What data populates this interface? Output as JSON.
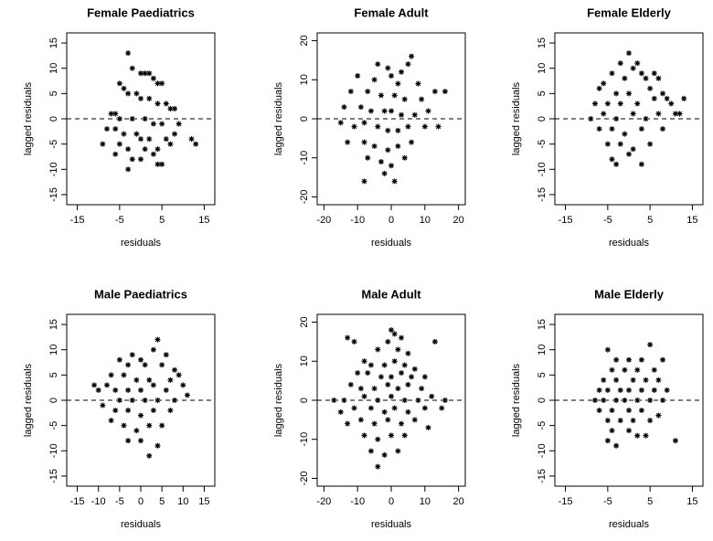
{
  "chart_data": [
    {
      "type": "scatter",
      "title": "Female Paediatrics",
      "xlabel": "residuals",
      "ylabel": "lagged residuals",
      "color": "#000000",
      "hline": 0,
      "xlim": [
        -17.5,
        17.5
      ],
      "ylim": [
        -17,
        17
      ],
      "xticks": [
        -15,
        -5,
        5,
        15
      ],
      "yticks": [
        -15,
        -10,
        -5,
        0,
        5,
        10,
        15
      ],
      "x": [
        -3,
        -2,
        0,
        1,
        2,
        3,
        4,
        5,
        -5,
        -4,
        -3,
        -1,
        0,
        2,
        4,
        6,
        7,
        8,
        -7,
        -6,
        -5,
        -2,
        1,
        3,
        5,
        9,
        -8,
        -6,
        -4,
        -1,
        0,
        2,
        6,
        8,
        -9,
        -5,
        -3,
        1,
        4,
        7,
        -6,
        -2,
        0,
        3,
        5,
        13,
        12,
        -3,
        4
      ],
      "y": [
        13,
        10,
        9,
        9,
        9,
        8,
        7,
        7,
        7,
        6,
        5,
        5,
        4,
        4,
        3,
        3,
        2,
        2,
        1,
        1,
        0,
        0,
        0,
        -1,
        -1,
        -1,
        -2,
        -2,
        -3,
        -3,
        -4,
        -4,
        -4,
        -3,
        -5,
        -5,
        -6,
        -6,
        -6,
        -5,
        -7,
        -8,
        -8,
        -7,
        -9,
        -5,
        -4,
        -10,
        -9
      ]
    },
    {
      "type": "scatter",
      "title": "Female Adult",
      "xlabel": "residuals",
      "ylabel": "lagged residuals",
      "color": "#000000",
      "hline": 0,
      "xlim": [
        -22,
        22
      ],
      "ylim": [
        -22,
        22
      ],
      "xticks": [
        -20,
        -10,
        0,
        10,
        20
      ],
      "yticks": [
        -20,
        -10,
        0,
        10,
        20
      ],
      "x": [
        -4,
        5,
        6,
        -1,
        3,
        0,
        -10,
        -5,
        2,
        8,
        -12,
        -7,
        -3,
        1,
        4,
        9,
        13,
        16,
        -14,
        -9,
        -6,
        -2,
        0,
        3,
        7,
        11,
        -15,
        -11,
        -8,
        -4,
        -1,
        2,
        5,
        10,
        14,
        -13,
        -8,
        -5,
        -1,
        2,
        6,
        -7,
        -3,
        0,
        4,
        -2,
        -8,
        1
      ],
      "y": [
        14,
        14,
        16,
        13,
        12,
        11,
        11,
        10,
        9,
        9,
        7,
        7,
        6,
        6,
        5,
        5,
        7,
        7,
        3,
        3,
        2,
        2,
        2,
        1,
        1,
        2,
        -1,
        -2,
        -1,
        -2,
        -3,
        -3,
        -2,
        -2,
        -2,
        -6,
        -6,
        -7,
        -8,
        -7,
        -6,
        -10,
        -11,
        -12,
        -10,
        -14,
        -16,
        -16
      ]
    },
    {
      "type": "scatter",
      "title": "Female Elderly",
      "xlabel": "residuals",
      "ylabel": "lagged residuals",
      "color": "#000000",
      "hline": 0,
      "xlim": [
        -17.5,
        17.5
      ],
      "ylim": [
        -17,
        17
      ],
      "xticks": [
        -15,
        -5,
        5,
        15
      ],
      "yticks": [
        -15,
        -10,
        -5,
        0,
        5,
        10,
        15
      ],
      "x": [
        0,
        -2,
        2,
        1,
        -4,
        3,
        6,
        -6,
        -1,
        4,
        7,
        -7,
        -3,
        0,
        5,
        8,
        9,
        -8,
        -5,
        -2,
        2,
        6,
        10,
        11,
        -9,
        -6,
        -3,
        1,
        4,
        7,
        12,
        13,
        -7,
        -4,
        -1,
        3,
        8,
        -5,
        -2,
        1,
        5,
        -4,
        0,
        3,
        -3
      ],
      "y": [
        13,
        11,
        11,
        10,
        9,
        9,
        9,
        7,
        8,
        8,
        8,
        6,
        5,
        5,
        6,
        5,
        4,
        3,
        3,
        3,
        3,
        4,
        3,
        1,
        0,
        1,
        0,
        1,
        0,
        1,
        1,
        4,
        -2,
        -2,
        -3,
        -2,
        -2,
        -5,
        -5,
        -6,
        -5,
        -8,
        -7,
        -9,
        -9
      ]
    },
    {
      "type": "scatter",
      "title": "Male Paediatrics",
      "xlabel": "residuals",
      "ylabel": "lagged residuals",
      "color": "#000000",
      "hline": 0,
      "xlim": [
        -17.5,
        17.5
      ],
      "ylim": [
        -17,
        17
      ],
      "xticks": [
        -15,
        -10,
        -5,
        0,
        5,
        10,
        15
      ],
      "yticks": [
        -15,
        -10,
        -5,
        0,
        5,
        10,
        15
      ],
      "x": [
        4,
        3,
        -2,
        0,
        6,
        -5,
        -3,
        1,
        5,
        8,
        -7,
        -4,
        -1,
        2,
        7,
        9,
        -8,
        -6,
        -3,
        0,
        3,
        6,
        10,
        -11,
        -10,
        -5,
        -2,
        1,
        4,
        8,
        11,
        -9,
        -6,
        -3,
        0,
        3,
        7,
        -7,
        -4,
        -1,
        2,
        5,
        -3,
        0,
        4,
        2
      ],
      "y": [
        12,
        10,
        9,
        8,
        9,
        8,
        7,
        7,
        7,
        6,
        5,
        5,
        4,
        4,
        4,
        5,
        3,
        2,
        2,
        2,
        3,
        2,
        3,
        3,
        2,
        0,
        0,
        0,
        0,
        0,
        1,
        -1,
        -2,
        -2,
        -3,
        -2,
        -2,
        -4,
        -5,
        -6,
        -5,
        -5,
        -8,
        -8,
        -9,
        -11
      ]
    },
    {
      "type": "scatter",
      "title": "Male Adult",
      "xlabel": "residuals",
      "ylabel": "lagged residuals",
      "color": "#000000",
      "hline": 0,
      "xlim": [
        -22,
        22
      ],
      "ylim": [
        -22,
        22
      ],
      "xticks": [
        -20,
        -10,
        0,
        10,
        20
      ],
      "yticks": [
        -20,
        -10,
        0,
        10,
        20
      ],
      "x": [
        0,
        1,
        -1,
        3,
        -13,
        -11,
        -4,
        2,
        5,
        -8,
        -6,
        -2,
        1,
        4,
        7,
        -10,
        -7,
        -3,
        0,
        3,
        6,
        10,
        -12,
        -9,
        -5,
        -1,
        2,
        5,
        9,
        13,
        -17,
        -14,
        -8,
        -4,
        0,
        4,
        8,
        12,
        16,
        -15,
        -11,
        -6,
        -2,
        1,
        5,
        10,
        15,
        -13,
        -9,
        -5,
        -1,
        3,
        7,
        11,
        -8,
        -4,
        0,
        4,
        -6,
        -2,
        2,
        -4
      ],
      "y": [
        18,
        17,
        15,
        16,
        16,
        15,
        13,
        13,
        12,
        10,
        9,
        9,
        10,
        9,
        8,
        7,
        7,
        6,
        6,
        7,
        6,
        6,
        4,
        3,
        3,
        4,
        3,
        4,
        3,
        15,
        0,
        0,
        1,
        0,
        1,
        0,
        0,
        1,
        0,
        -3,
        -2,
        -2,
        -3,
        -2,
        -3,
        -2,
        -2,
        -6,
        -5,
        -6,
        -5,
        -6,
        -5,
        -7,
        -9,
        -10,
        -9,
        -9,
        -13,
        -14,
        -13,
        -17
      ]
    },
    {
      "type": "scatter",
      "title": "Male Elderly",
      "xlabel": "residuals",
      "ylabel": "lagged residuals",
      "color": "#000000",
      "hline": 0,
      "xlim": [
        -17.5,
        17.5
      ],
      "ylim": [
        -17,
        17
      ],
      "xticks": [
        -15,
        -5,
        5,
        15
      ],
      "yticks": [
        -15,
        -10,
        -5,
        0,
        5,
        10,
        15
      ],
      "x": [
        -5,
        5,
        -3,
        0,
        3,
        8,
        -4,
        -1,
        2,
        6,
        -6,
        -3,
        1,
        4,
        7,
        -7,
        -5,
        -2,
        0,
        3,
        6,
        9,
        -8,
        -6,
        -3,
        -1,
        2,
        5,
        8,
        -7,
        -4,
        0,
        3,
        7,
        -5,
        -2,
        1,
        5,
        -4,
        0,
        4,
        -5,
        -3,
        11,
        2
      ],
      "y": [
        10,
        11,
        8,
        8,
        8,
        8,
        6,
        6,
        6,
        6,
        4,
        4,
        4,
        4,
        4,
        2,
        2,
        2,
        2,
        2,
        2,
        2,
        0,
        0,
        0,
        0,
        0,
        0,
        0,
        -2,
        -2,
        -2,
        -2,
        -3,
        -4,
        -4,
        -4,
        -4,
        -6,
        -6,
        -7,
        -8,
        -9,
        -8,
        -7
      ]
    }
  ]
}
